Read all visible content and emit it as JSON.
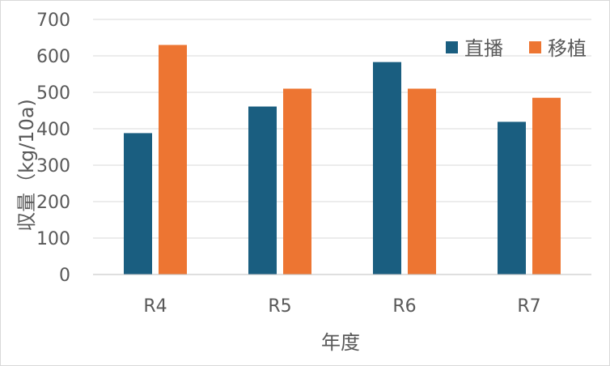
{
  "chart_data": {
    "type": "bar",
    "categories": [
      "R4",
      "R5",
      "R6",
      "R7"
    ],
    "series": [
      {
        "name": "直播",
        "values": [
          388,
          461,
          583,
          419
        ],
        "color": "#1a5e80"
      },
      {
        "name": "移植",
        "values": [
          630,
          510,
          510,
          485
        ],
        "color": "#ed7532"
      }
    ],
    "xlabel": "年度",
    "ylabel": "収量（kg/10a)",
    "ylim": [
      0,
      700
    ],
    "yticks": [
      0,
      100,
      200,
      300,
      400,
      500,
      600,
      700
    ],
    "grid": true,
    "legend_position": "top-right"
  }
}
